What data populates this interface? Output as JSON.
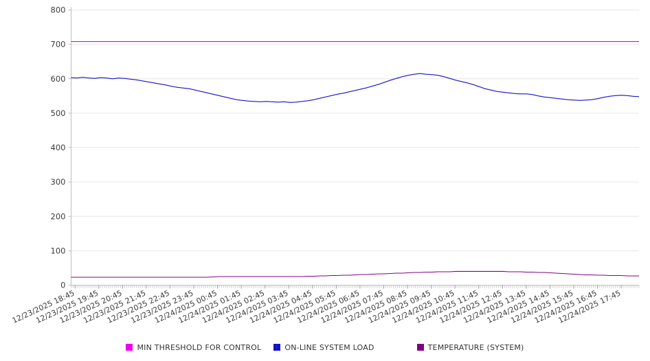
{
  "chart_data": {
    "type": "line",
    "title": "",
    "xlabel": "",
    "ylabel": "",
    "ylim": [
      0,
      800
    ],
    "y_ticks": [
      0,
      100,
      200,
      300,
      400,
      500,
      600,
      700,
      800
    ],
    "grid": true,
    "legend_position": "bottom",
    "minor_ticks_per_label": 12,
    "x_labels": [
      "12/23/2025 18:45",
      "12/23/2025 19:45",
      "12/23/2025 20:45",
      "12/23/2025 21:45",
      "12/23/2025 22:45",
      "12/23/2025 23:45",
      "12/24/2025 00:45",
      "12/24/2025 01:45",
      "12/24/2025 02:45",
      "12/24/2025 03:45",
      "12/24/2025 04:45",
      "12/24/2025 05:45",
      "12/24/2025 06:45",
      "12/24/2025 07:45",
      "12/24/2025 08:45",
      "12/24/2025 09:45",
      "12/24/2025 10:45",
      "12/24/2025 11:45",
      "12/24/2025 12:45",
      "12/24/2025 13:45",
      "12/24/2025 14:45",
      "12/24/2025 15:45",
      "12/24/2025 16:45",
      "12/24/2025 17:45"
    ],
    "series": [
      {
        "name": "MIN THRESHOLD FOR CONTROL",
        "color": "#EE00EE",
        "values": [
          708,
          708
        ]
      },
      {
        "name": "ON-LINE SYSTEM LOAD",
        "color": "#1414C8",
        "values": [
          603,
          602,
          604,
          602,
          601,
          603,
          602,
          600,
          602,
          601,
          599,
          597,
          594,
          591,
          588,
          585,
          582,
          578,
          575,
          573,
          571,
          567,
          563,
          559,
          555,
          551,
          547,
          543,
          539,
          537,
          535,
          534,
          533,
          534,
          533,
          532,
          533,
          531,
          532,
          534,
          536,
          539,
          543,
          547,
          551,
          555,
          558,
          562,
          566,
          570,
          574,
          579,
          584,
          590,
          596,
          601,
          606,
          610,
          613,
          615,
          613,
          612,
          610,
          606,
          601,
          596,
          592,
          588,
          583,
          577,
          571,
          567,
          563,
          561,
          559,
          557,
          556,
          556,
          554,
          550,
          547,
          545,
          543,
          541,
          539,
          538,
          537,
          538,
          539,
          542,
          546,
          549,
          551,
          552,
          551,
          549,
          548
        ]
      },
      {
        "name": "TEMPERATURE (SYSTEM)",
        "color": "#800080",
        "values": [
          23,
          23,
          23,
          23,
          23,
          23,
          23,
          23,
          23,
          23,
          23,
          23,
          23,
          23,
          23,
          23,
          23,
          23,
          23,
          23,
          23,
          23,
          23,
          23,
          24,
          25,
          25,
          25,
          25,
          25,
          25,
          25,
          25,
          25,
          25,
          25,
          25,
          25,
          25,
          25,
          26,
          26,
          27,
          27,
          28,
          28,
          29,
          29,
          30,
          31,
          31,
          32,
          33,
          33,
          34,
          35,
          35,
          36,
          37,
          37,
          38,
          38,
          39,
          39,
          39,
          40,
          40,
          40,
          40,
          40,
          40,
          40,
          40,
          40,
          39,
          39,
          39,
          38,
          38,
          37,
          37,
          36,
          35,
          34,
          33,
          32,
          31,
          30,
          30,
          29,
          29,
          28,
          28,
          28,
          27,
          27,
          27
        ]
      }
    ],
    "colors": {
      "grid_line": "#e6e6e6",
      "axis_line": "#bdbdbd",
      "minor_tick": "#cccccc",
      "major_tick": "#9a9a9a",
      "tick_label": "#3c3c3c"
    }
  }
}
